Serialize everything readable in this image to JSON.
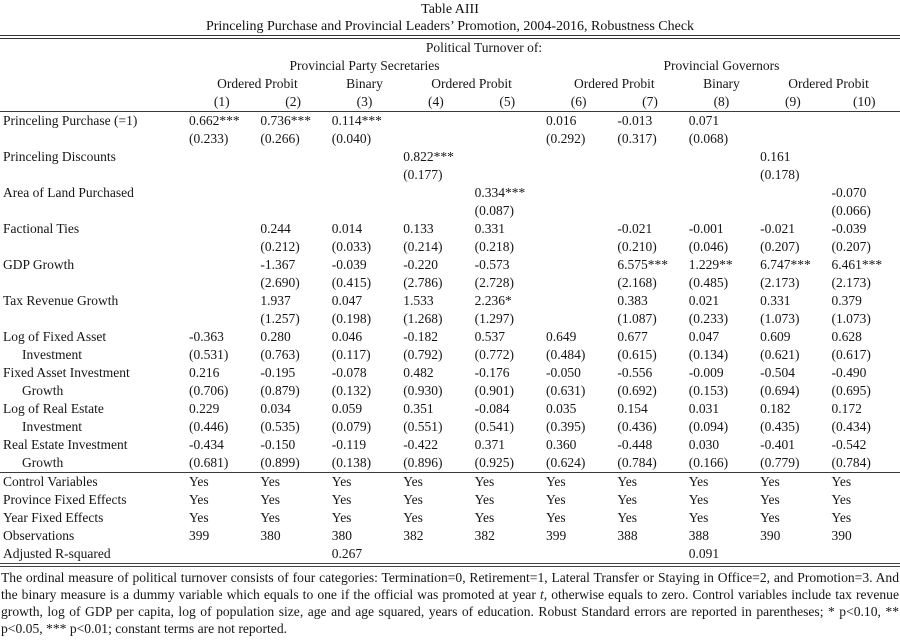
{
  "title": {
    "line1": "Table AIII",
    "line2": "Princeling Purchase and Provincial Leaders’ Promotion, 2004-2016, Robustness Check"
  },
  "header": {
    "political_turnover": "Political Turnover of:",
    "groups": [
      {
        "label": "Provincial Party Secretaries",
        "span": 5
      },
      {
        "label": "Provincial Governors",
        "span": 5
      }
    ],
    "methods": [
      {
        "label": "Ordered Probit",
        "span": 2
      },
      {
        "label": "Binary",
        "span": 1
      },
      {
        "label": "Ordered Probit",
        "span": 2
      },
      {
        "label": "Ordered Probit",
        "span": 2
      },
      {
        "label": "Binary",
        "span": 1
      },
      {
        "label": "Ordered Probit",
        "span": 2
      }
    ],
    "column_numbers": [
      "(1)",
      "(2)",
      "(3)",
      "(4)",
      "(5)",
      "(6)",
      "(7)",
      "(8)",
      "(9)",
      "(10)"
    ]
  },
  "coefficient_rows": [
    {
      "label": [
        "Princeling Purchase (=1)"
      ],
      "coef": [
        "0.662***",
        "0.736***",
        "0.114***",
        "",
        "",
        "0.016",
        "-0.013",
        "0.071",
        "",
        ""
      ],
      "se": [
        "(0.233)",
        "(0.266)",
        "(0.040)",
        "",
        "",
        "(0.292)",
        "(0.317)",
        "(0.068)",
        "",
        ""
      ]
    },
    {
      "label": [
        "Princeling Discounts"
      ],
      "coef": [
        "",
        "",
        "",
        "0.822***",
        "",
        "",
        "",
        "",
        "0.161",
        ""
      ],
      "se": [
        "",
        "",
        "",
        "(0.177)",
        "",
        "",
        "",
        "",
        "(0.178)",
        ""
      ]
    },
    {
      "label": [
        "Area of Land Purchased"
      ],
      "coef": [
        "",
        "",
        "",
        "",
        "0.334***",
        "",
        "",
        "",
        "",
        "-0.070"
      ],
      "se": [
        "",
        "",
        "",
        "",
        "(0.087)",
        "",
        "",
        "",
        "",
        "(0.066)"
      ]
    },
    {
      "label": [
        "Factional Ties"
      ],
      "coef": [
        "",
        "0.244",
        "0.014",
        "0.133",
        "0.331",
        "",
        "-0.021",
        "-0.001",
        "-0.021",
        "-0.039"
      ],
      "se": [
        "",
        "(0.212)",
        "(0.033)",
        "(0.214)",
        "(0.218)",
        "",
        "(0.210)",
        "(0.046)",
        "(0.207)",
        "(0.207)"
      ]
    },
    {
      "label": [
        "GDP Growth"
      ],
      "coef": [
        "",
        "-1.367",
        "-0.039",
        "-0.220",
        "-0.573",
        "",
        "6.575***",
        "1.229**",
        "6.747***",
        "6.461***"
      ],
      "se": [
        "",
        "(2.690)",
        "(0.415)",
        "(2.786)",
        "(2.728)",
        "",
        "(2.168)",
        "(0.485)",
        "(2.173)",
        "(2.173)"
      ]
    },
    {
      "label": [
        "Tax Revenue Growth"
      ],
      "coef": [
        "",
        "1.937",
        "0.047",
        "1.533",
        "2.236*",
        "",
        "0.383",
        "0.021",
        "0.331",
        "0.379"
      ],
      "se": [
        "",
        "(1.257)",
        "(0.198)",
        "(1.268)",
        "(1.297)",
        "",
        "(1.087)",
        "(0.233)",
        "(1.073)",
        "(1.073)"
      ]
    },
    {
      "label": [
        "Log of Fixed Asset",
        "Investment"
      ],
      "coef": [
        "-0.363",
        "0.280",
        "0.046",
        "-0.182",
        "0.537",
        "0.649",
        "0.677",
        "0.047",
        "0.609",
        "0.628"
      ],
      "se": [
        "(0.531)",
        "(0.763)",
        "(0.117)",
        "(0.792)",
        "(0.772)",
        "(0.484)",
        "(0.615)",
        "(0.134)",
        "(0.621)",
        "(0.617)"
      ]
    },
    {
      "label": [
        "Fixed Asset Investment",
        "Growth"
      ],
      "coef": [
        "0.216",
        "-0.195",
        "-0.078",
        "0.482",
        "-0.176",
        "-0.050",
        "-0.556",
        "-0.009",
        "-0.504",
        "-0.490"
      ],
      "se": [
        "(0.706)",
        "(0.879)",
        "(0.132)",
        "(0.930)",
        "(0.901)",
        "(0.631)",
        "(0.692)",
        "(0.153)",
        "(0.694)",
        "(0.695)"
      ]
    },
    {
      "label": [
        "Log of Real Estate",
        "Investment"
      ],
      "coef": [
        "0.229",
        "0.034",
        "0.059",
        "0.351",
        "-0.084",
        "0.035",
        "0.154",
        "0.031",
        "0.182",
        "0.172"
      ],
      "se": [
        "(0.446)",
        "(0.535)",
        "(0.079)",
        "(0.551)",
        "(0.541)",
        "(0.395)",
        "(0.436)",
        "(0.094)",
        "(0.435)",
        "(0.434)"
      ]
    },
    {
      "label": [
        "Real Estate Investment",
        "Growth"
      ],
      "coef": [
        "-0.434",
        "-0.150",
        "-0.119",
        "-0.422",
        "0.371",
        "0.360",
        "-0.448",
        "0.030",
        "-0.401",
        "-0.542"
      ],
      "se": [
        "(0.681)",
        "(0.899)",
        "(0.138)",
        "(0.896)",
        "(0.925)",
        "(0.624)",
        "(0.784)",
        "(0.166)",
        "(0.779)",
        "(0.784)"
      ]
    }
  ],
  "summary_rows": [
    {
      "label": "Control Variables",
      "values": [
        "Yes",
        "Yes",
        "Yes",
        "Yes",
        "Yes",
        "Yes",
        "Yes",
        "Yes",
        "Yes",
        "Yes"
      ]
    },
    {
      "label": "Province Fixed Effects",
      "values": [
        "Yes",
        "Yes",
        "Yes",
        "Yes",
        "Yes",
        "Yes",
        "Yes",
        "Yes",
        "Yes",
        "Yes"
      ]
    },
    {
      "label": "Year Fixed Effects",
      "values": [
        "Yes",
        "Yes",
        "Yes",
        "Yes",
        "Yes",
        "Yes",
        "Yes",
        "Yes",
        "Yes",
        "Yes"
      ]
    },
    {
      "label": "Observations",
      "values": [
        "399",
        "380",
        "380",
        "382",
        "382",
        "399",
        "388",
        "388",
        "390",
        "390"
      ]
    },
    {
      "label": "Adjusted R-squared",
      "values": [
        "",
        "",
        "0.267",
        "",
        "",
        "",
        "",
        "0.091",
        "",
        ""
      ]
    }
  ],
  "footnote": {
    "part1": "The ordinal measure of political turnover consists of four categories: Termination=0, Retirement=1, Lateral Transfer or Staying in Office=2, and Promotion=3.  And the binary measure is a dummy variable which equals to one if the official was promoted at year ",
    "italic_t": "t",
    "part2": ", otherwise equals to zero. Control variables include tax revenue growth, log of GDP per capita, log of population size, age and age squared, years of education.  Robust Standard errors are reported in parentheses; * p<0.10, ** p<0.05, *** p<0.01; constant terms are not reported."
  }
}
